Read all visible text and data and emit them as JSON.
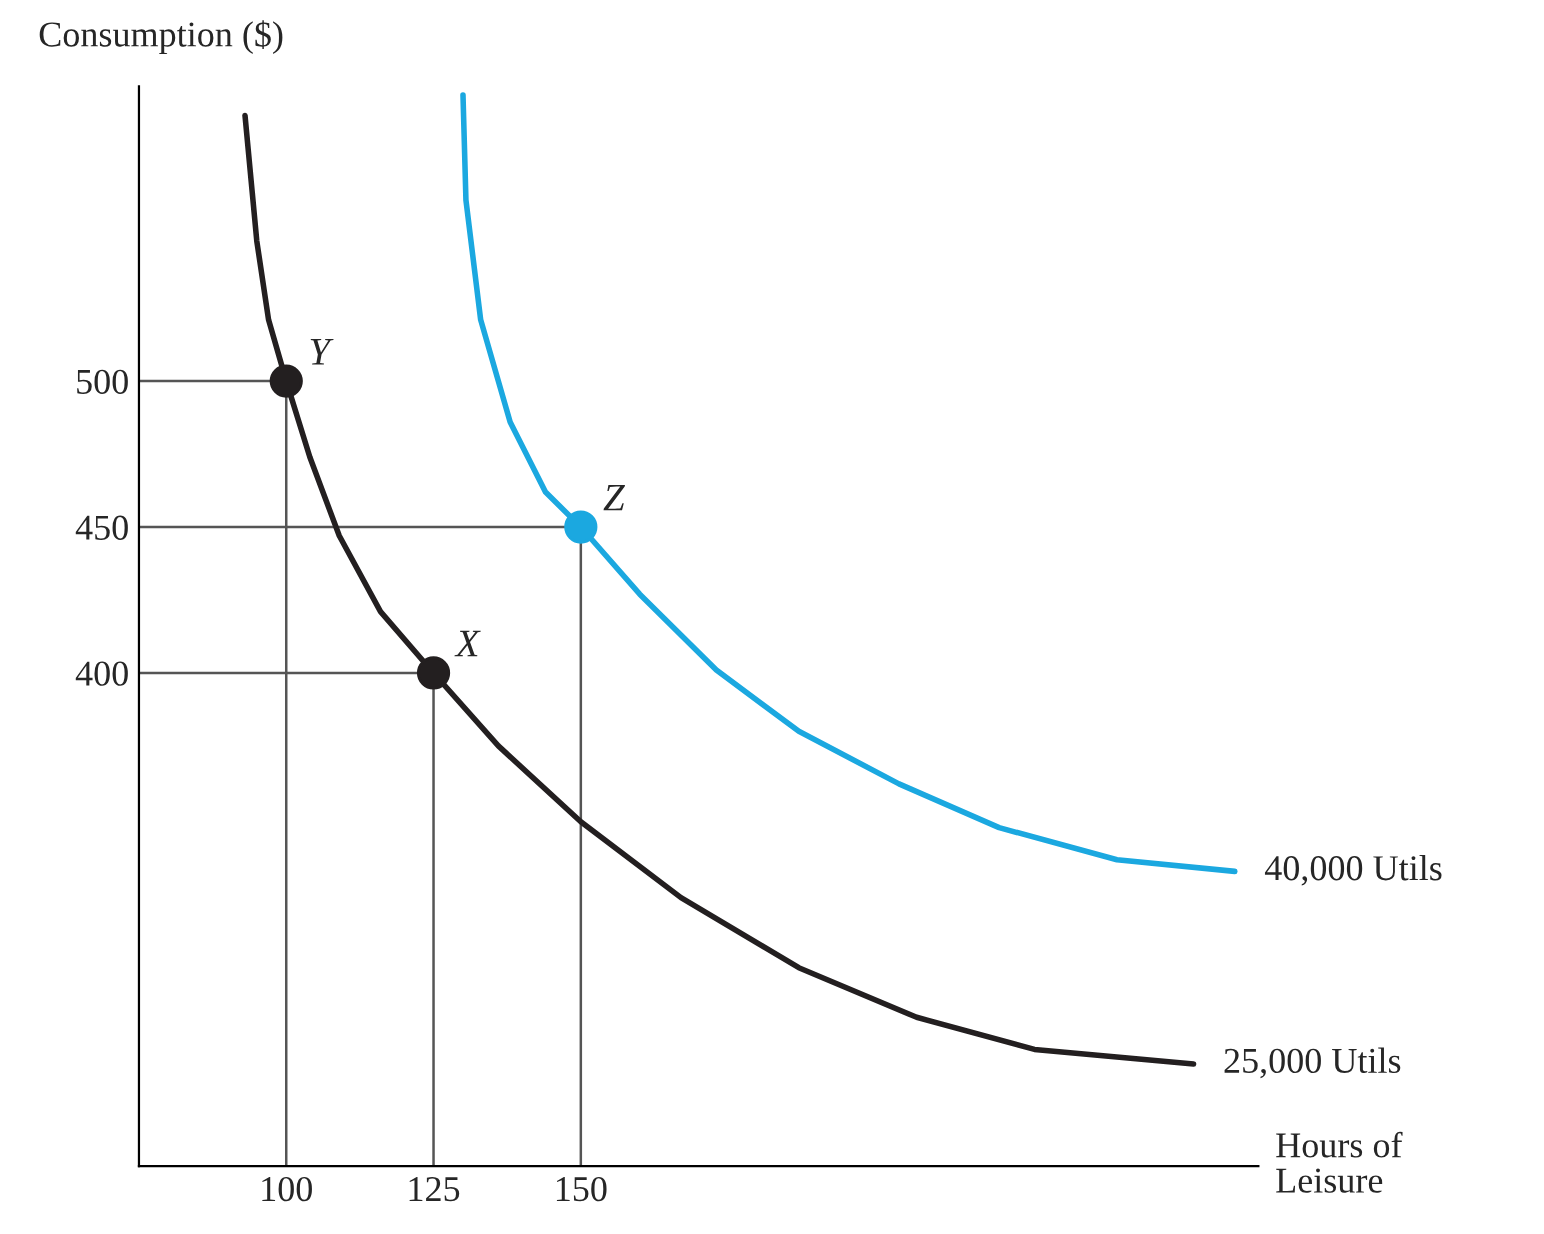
{
  "chart_data": {
    "type": "line",
    "xlabel": "Hours of\nLeisure",
    "ylabel": "Consumption ($)",
    "xlim": [
      75,
      265
    ],
    "ylim": [
      231,
      601
    ],
    "xticks": [
      100,
      125,
      150
    ],
    "yticks": [
      400,
      450,
      500
    ],
    "grid": false,
    "marker": "none",
    "line_style": "solid",
    "series": [
      {
        "name": "25,000 Utils",
        "color": "#231f20",
        "x": [
          93,
          95,
          97,
          100,
          104,
          109,
          116,
          125,
          136,
          150,
          167,
          187,
          207,
          227,
          254
        ],
        "values": [
          591,
          548,
          521,
          500,
          474,
          447,
          421,
          400,
          375,
          349,
          323,
          299,
          282,
          271,
          266
        ]
      },
      {
        "name": "40,000 Utils",
        "color": "#1ba8e0",
        "x": [
          130,
          130.5,
          133,
          138,
          144,
          150,
          160,
          173,
          187,
          204,
          221,
          241,
          261
        ],
        "values": [
          598,
          562,
          521,
          486,
          462,
          450,
          427,
          401,
          380,
          362,
          347,
          336,
          332
        ]
      },
      {
        "type": "line",
        "color": "#555555",
        "x": [
          75,
          100,
          100
        ],
        "values": [
          500,
          500,
          231
        ]
      },
      {
        "type": "line",
        "color": "#555555",
        "x": [
          75,
          150,
          150
        ],
        "values": [
          450,
          450,
          231
        ]
      },
      {
        "type": "line",
        "color": "#555555",
        "x": [
          75,
          125,
          125
        ],
        "values": [
          400,
          400,
          231
        ]
      },
      {
        "type": "scatter",
        "marker": "circle",
        "colors": [
          "#231f20",
          "#1ba8e0",
          "#231f20"
        ],
        "x": [
          100,
          150,
          125
        ],
        "values": [
          500,
          450,
          400
        ]
      }
    ],
    "annotations": [
      {
        "text": "Y",
        "x": 100,
        "y": 500
      },
      {
        "text": "Z",
        "x": 150,
        "y": 450
      },
      {
        "text": "X",
        "x": 125,
        "y": 400
      }
    ]
  }
}
